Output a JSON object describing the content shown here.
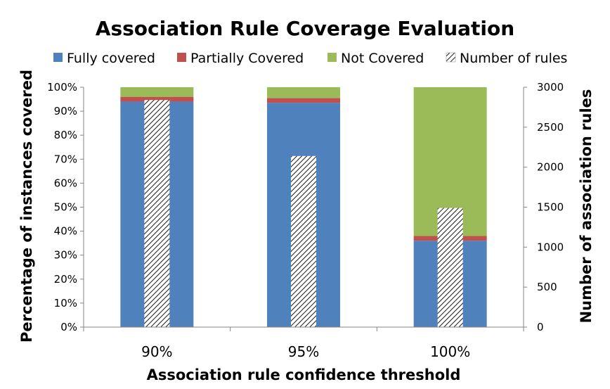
{
  "chart_data": {
    "type": "bar",
    "title": "Association Rule Coverage Evaluation",
    "xlabel": "Association rule confidence threshold",
    "ylabel": "Percentage of instances covered",
    "y2label": "Number of association rules",
    "categories": [
      "90%",
      "95%",
      "100%"
    ],
    "ylim": [
      0,
      100
    ],
    "y2lim": [
      0,
      3000
    ],
    "yticks": [
      "0%",
      "10%",
      "20%",
      "30%",
      "40%",
      "50%",
      "60%",
      "70%",
      "80%",
      "90%",
      "100%"
    ],
    "y2ticks": [
      "0",
      "500",
      "1000",
      "1500",
      "2000",
      "2500",
      "3000"
    ],
    "stacked": true,
    "legend_position": "top",
    "series": [
      {
        "name": "Fully covered",
        "axis": "left",
        "color": "#4F81BD",
        "values": [
          94,
          93.5,
          36
        ]
      },
      {
        "name": "Partially Covered",
        "axis": "left",
        "color": "#C0504D",
        "values": [
          2,
          2,
          2
        ]
      },
      {
        "name": "Not Covered",
        "axis": "left",
        "color": "#9BBB59",
        "values": [
          4,
          4.5,
          62
        ]
      },
      {
        "name": "Number of rules",
        "axis": "right",
        "pattern": "hatched",
        "values": [
          2840,
          2140,
          1490
        ]
      }
    ]
  }
}
